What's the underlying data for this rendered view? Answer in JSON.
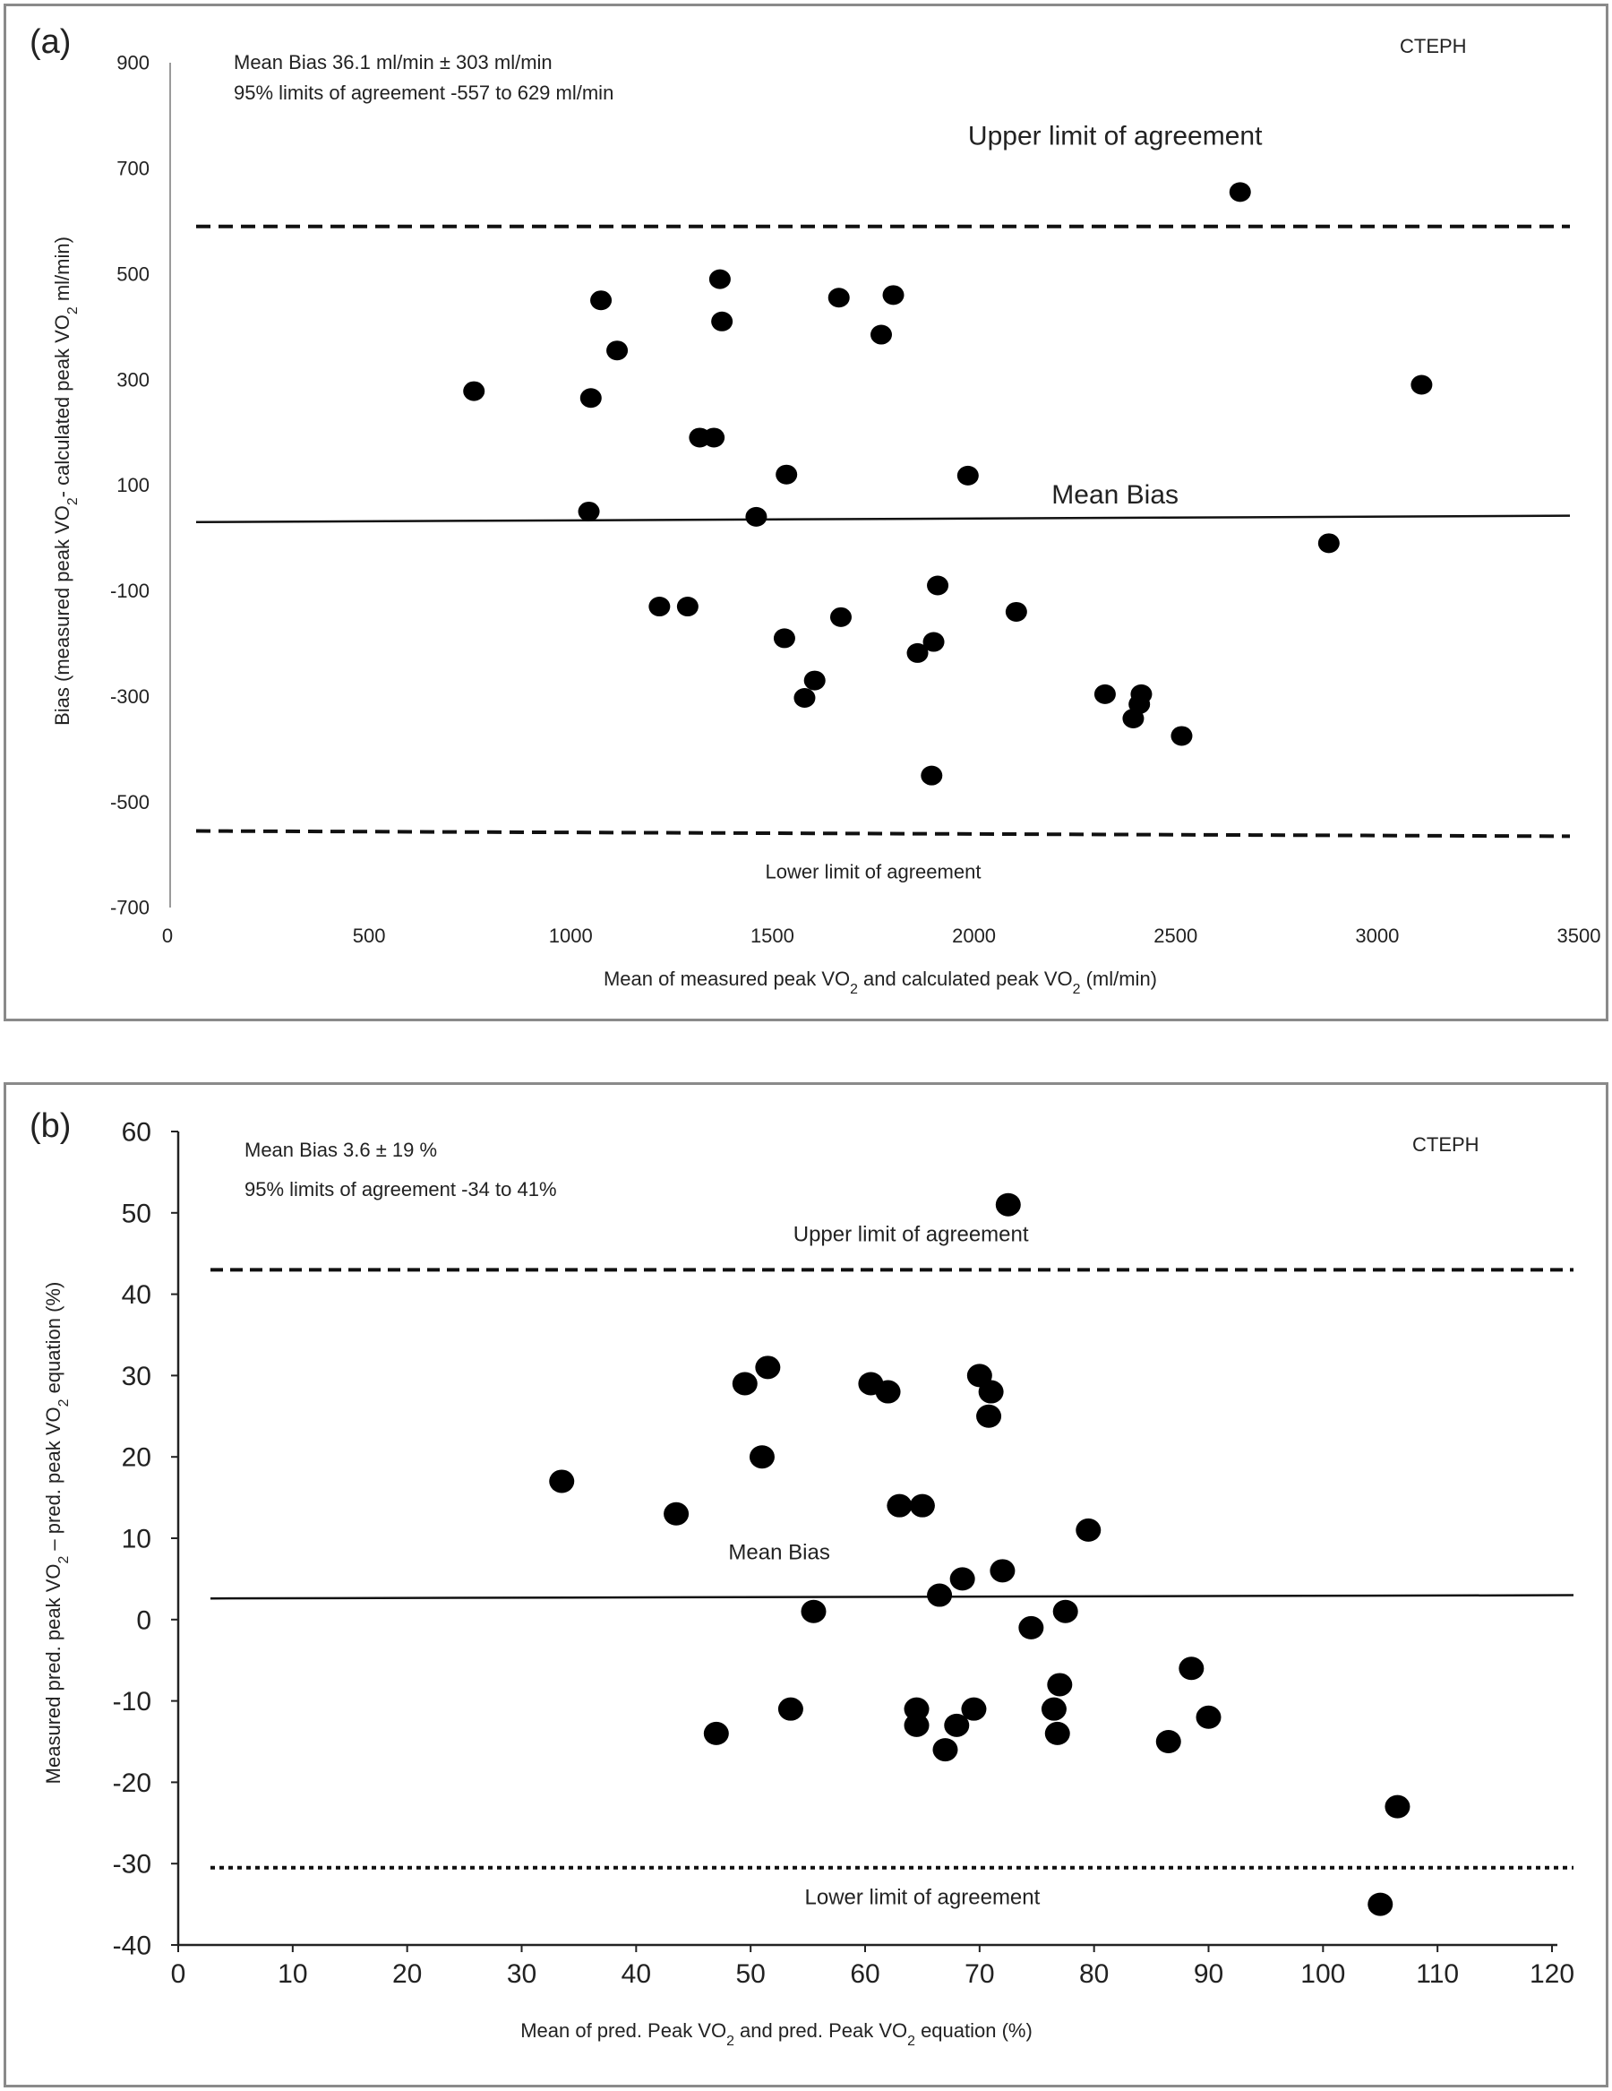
{
  "chart_data": [
    {
      "type": "scatter",
      "panel_label": "(a)",
      "group_label": "CTEPH",
      "annotation_lines": [
        "Mean Bias 36.1 ml/min ± 303 ml/min",
        "95% limits of agreement -557 to 629 ml/min"
      ],
      "ylabel_parts": [
        "Bias (measured peak VO",
        "2",
        "- calculated peak VO",
        "2",
        " ml/min)"
      ],
      "xlabel_parts": [
        "Mean of measured peak VO",
        "2",
        " and calculated peak VO",
        "2",
        " (ml/min)"
      ],
      "xlim": [
        0,
        3500
      ],
      "ylim": [
        -700,
        900
      ],
      "xticks": [
        0,
        500,
        1000,
        1500,
        2000,
        2500,
        3000,
        3500
      ],
      "yticks": [
        -700,
        -500,
        -300,
        -100,
        100,
        300,
        500,
        700,
        900
      ],
      "grid": false,
      "reference_lines": [
        {
          "name": "Upper limit of agreement",
          "style": "dashed",
          "x": [
            0,
            3500
          ],
          "y": [
            590,
            590
          ]
        },
        {
          "name": "Mean Bias",
          "style": "solid",
          "x": [
            0,
            3500
          ],
          "y": [
            30,
            42
          ]
        },
        {
          "name": "Lower limit of agreement",
          "style": "dashed",
          "x": [
            0,
            3500
          ],
          "y": [
            -555,
            -565
          ]
        }
      ],
      "line_labels": [
        {
          "text": "Upper limit of agreement",
          "x": 2350,
          "y": 745
        },
        {
          "text": "Mean  Bias",
          "x": 2350,
          "y": 65
        },
        {
          "text": "Lower limit of agreement",
          "x": 1750,
          "y": -645
        }
      ],
      "x": [
        2660,
        1370,
        1075,
        1665,
        1800,
        1375,
        1770,
        1115,
        3110,
        760,
        1050,
        1320,
        1355,
        1535,
        1985,
        1045,
        1460,
        2880,
        1220,
        1290,
        1910,
        1670,
        2105,
        1530,
        1900,
        1860,
        1605,
        1580,
        2325,
        2415,
        2410,
        2395,
        2515,
        1895
      ],
      "y": [
        655,
        490,
        450,
        455,
        460,
        410,
        385,
        355,
        290,
        278,
        265,
        190,
        190,
        120,
        118,
        50,
        40,
        -10,
        -130,
        -130,
        -90,
        -150,
        -140,
        -190,
        -197,
        -218,
        -270,
        -303,
        -296,
        -296,
        -315,
        -342,
        -375,
        -450
      ]
    },
    {
      "type": "scatter",
      "panel_label": "(b)",
      "group_label": "CTEPH",
      "annotation_lines": [
        "Mean Bias 3.6 ±  19 %",
        "95% limits of agreement -34 to 41%"
      ],
      "ylabel_parts": [
        "Measured pred. peak VO",
        "2",
        " – pred. peak VO",
        "2",
        " equation (%)"
      ],
      "xlabel_parts": [
        "Mean of pred. Peak VO",
        "2",
        " and pred. Peak VO",
        "2",
        " equation  (%)"
      ],
      "xlim": [
        0,
        120
      ],
      "ylim": [
        -40,
        60
      ],
      "xticks": [
        0,
        10,
        20,
        30,
        40,
        50,
        60,
        70,
        80,
        90,
        100,
        110,
        120
      ],
      "yticks": [
        -40,
        -30,
        -20,
        -10,
        0,
        10,
        20,
        30,
        40,
        50,
        60
      ],
      "grid": false,
      "reference_lines": [
        {
          "name": "Upper limit of agreement",
          "style": "dashed",
          "x": [
            0,
            120
          ],
          "y": [
            43,
            43
          ]
        },
        {
          "name": "Mean Bias",
          "style": "solid",
          "x": [
            0,
            120
          ],
          "y": [
            2.6,
            3.0
          ]
        },
        {
          "name": "Lower limit of agreement",
          "style": "dotted",
          "x": [
            0,
            120
          ],
          "y": [
            -30.5,
            -30.5
          ]
        }
      ],
      "line_labels": [
        {
          "text": "Upper limit of agreement",
          "x": 64,
          "y": 46.5
        },
        {
          "text": "Mean Bias",
          "x": 52.5,
          "y": 7.4
        },
        {
          "text": "Lower limit of agreement",
          "x": 65,
          "y": -35
        }
      ],
      "x": [
        72.5,
        51.5,
        49.5,
        60.5,
        62,
        70,
        71,
        70.8,
        51,
        33.5,
        43.5,
        63,
        65,
        79.5,
        55.5,
        68.5,
        72,
        66.5,
        74.5,
        77.5,
        88.5,
        77,
        90,
        53.5,
        64.5,
        69.5,
        76.5,
        47,
        64.5,
        68,
        76.8,
        67,
        86.5,
        106.5,
        105
      ],
      "y": [
        51,
        31,
        29,
        29,
        28,
        30,
        28,
        25,
        20,
        17,
        13,
        14,
        14,
        11,
        1,
        5,
        6,
        3,
        -1,
        1,
        -6,
        -8,
        -12,
        -11,
        -11,
        -11,
        -11,
        -14,
        -13,
        -13,
        -14,
        -16,
        -15,
        -23,
        -35
      ]
    }
  ]
}
